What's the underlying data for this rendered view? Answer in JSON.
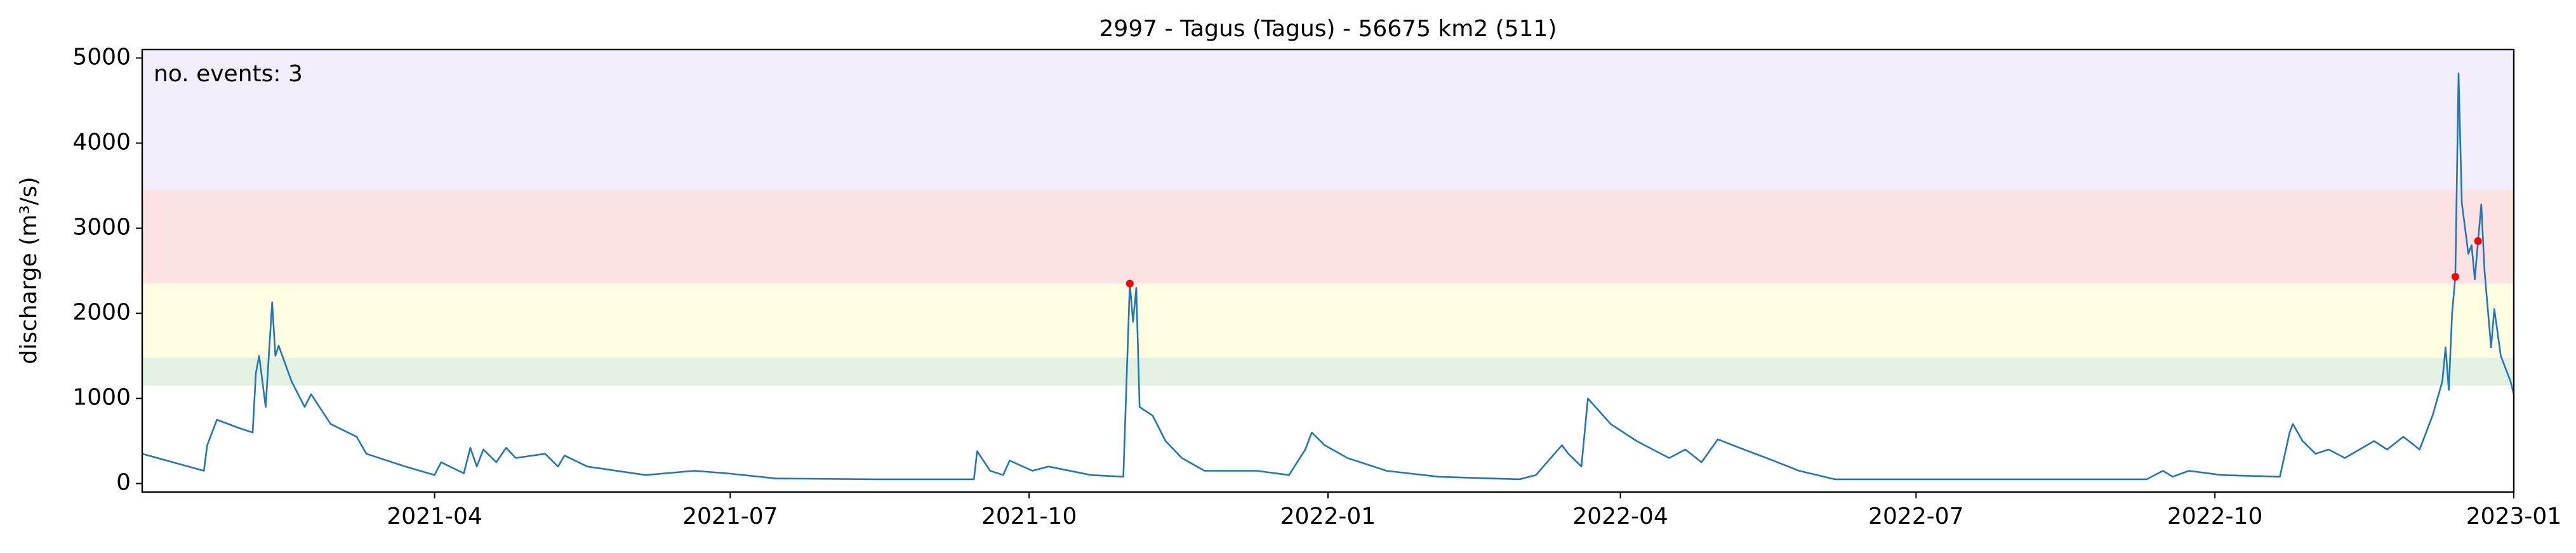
{
  "chart_data": {
    "type": "line",
    "title": "2997 - Tagus (Tagus) - 56675 km2 (511)",
    "y_label": "discharge (m³/s)",
    "annotation": "no. events: 3",
    "annotation_color": "#ff0000",
    "color": "#1f77b4",
    "xlim": [
      "2021-01-01",
      "2023-01-01"
    ],
    "ylim": [
      -100,
      5100
    ],
    "yticks": [
      0,
      1000,
      2000,
      3000,
      4000,
      5000
    ],
    "xticks": [
      {
        "value": "2021-04-01",
        "label": "2021-04"
      },
      {
        "value": "2021-07-01",
        "label": "2021-07"
      },
      {
        "value": "2021-10-01",
        "label": "2021-10"
      },
      {
        "value": "2022-01-01",
        "label": "2022-01"
      },
      {
        "value": "2022-04-01",
        "label": "2022-04"
      },
      {
        "value": "2022-07-01",
        "label": "2022-07"
      },
      {
        "value": "2022-10-01",
        "label": "2022-10"
      },
      {
        "value": "2023-01-01",
        "label": "2023-01"
      }
    ],
    "bands": [
      {
        "range": [
          1150,
          1480
        ],
        "color": "#e3f1e3"
      },
      {
        "range": [
          1480,
          2350
        ],
        "color": "#fefde2"
      },
      {
        "range": [
          2350,
          3450
        ],
        "color": "#fde2e4"
      },
      {
        "range": [
          3450,
          5100
        ],
        "color": "#f2eef9"
      }
    ],
    "x": [
      "2021-01-01",
      "2021-01-20",
      "2021-01-21",
      "2021-01-24",
      "2021-01-31",
      "2021-02-04",
      "2021-02-05",
      "2021-02-06",
      "2021-02-08",
      "2021-02-10",
      "2021-02-11",
      "2021-02-12",
      "2021-02-16",
      "2021-02-20",
      "2021-02-22",
      "2021-02-28",
      "2021-03-08",
      "2021-03-11",
      "2021-03-23",
      "2021-04-01",
      "2021-04-03",
      "2021-04-10",
      "2021-04-12",
      "2021-04-14",
      "2021-04-16",
      "2021-04-20",
      "2021-04-23",
      "2021-04-26",
      "2021-05-05",
      "2021-05-09",
      "2021-05-11",
      "2021-05-18",
      "2021-06-05",
      "2021-06-20",
      "2021-06-30",
      "2021-07-15",
      "2021-08-15",
      "2021-09-14",
      "2021-09-15",
      "2021-09-19",
      "2021-09-23",
      "2021-09-25",
      "2021-10-02",
      "2021-10-07",
      "2021-10-20",
      "2021-10-30",
      "2021-11-01",
      "2021-11-02",
      "2021-11-03",
      "2021-11-04",
      "2021-11-08",
      "2021-11-12",
      "2021-11-17",
      "2021-11-24",
      "2021-12-10",
      "2021-12-20",
      "2021-12-25",
      "2021-12-27",
      "2021-12-31",
      "2022-01-07",
      "2022-01-19",
      "2022-02-04",
      "2022-03-01",
      "2022-03-06",
      "2022-03-14",
      "2022-03-16",
      "2022-03-20",
      "2022-03-22",
      "2022-03-29",
      "2022-04-06",
      "2022-04-16",
      "2022-04-21",
      "2022-04-26",
      "2022-05-01",
      "2022-05-09",
      "2022-05-16",
      "2022-05-26",
      "2022-06-06",
      "2022-09-10",
      "2022-09-15",
      "2022-09-18",
      "2022-09-23",
      "2022-10-03",
      "2022-10-21",
      "2022-10-24",
      "2022-10-25",
      "2022-10-28",
      "2022-11-01",
      "2022-11-05",
      "2022-11-10",
      "2022-11-19",
      "2022-11-23",
      "2022-11-28",
      "2022-12-03",
      "2022-12-07",
      "2022-12-10",
      "2022-12-11",
      "2022-12-12",
      "2022-12-13",
      "2022-12-14",
      "2022-12-15",
      "2022-12-16",
      "2022-12-18",
      "2022-12-19",
      "2022-12-20",
      "2022-12-21",
      "2022-12-22",
      "2022-12-23",
      "2022-12-25",
      "2022-12-26",
      "2022-12-28",
      "2022-12-31",
      "2023-01-01"
    ],
    "values": [
      350,
      150,
      450,
      750,
      650,
      600,
      1300,
      1500,
      900,
      2130,
      1500,
      1620,
      1200,
      900,
      1050,
      700,
      550,
      350,
      200,
      100,
      250,
      120,
      420,
      200,
      400,
      250,
      420,
      300,
      350,
      200,
      330,
      200,
      100,
      150,
      120,
      60,
      50,
      50,
      380,
      150,
      100,
      270,
      150,
      200,
      100,
      80,
      2350,
      1900,
      2300,
      900,
      800,
      500,
      300,
      150,
      150,
      100,
      400,
      600,
      450,
      300,
      150,
      80,
      50,
      100,
      450,
      350,
      200,
      1000,
      700,
      500,
      300,
      400,
      250,
      520,
      400,
      300,
      150,
      50,
      50,
      150,
      80,
      150,
      100,
      80,
      600,
      700,
      500,
      350,
      400,
      300,
      500,
      400,
      550,
      400,
      800,
      1200,
      1600,
      1100,
      2000,
      2430,
      4820,
      3300,
      2700,
      2800,
      2400,
      2850,
      3280,
      2500,
      1600,
      2050,
      1500,
      1200,
      1050
    ],
    "events": {
      "color": "#ff0000",
      "x": [
        "2021-11-01",
        "2022-12-14",
        "2022-12-21"
      ],
      "values": [
        2350,
        2430,
        2850
      ]
    }
  }
}
